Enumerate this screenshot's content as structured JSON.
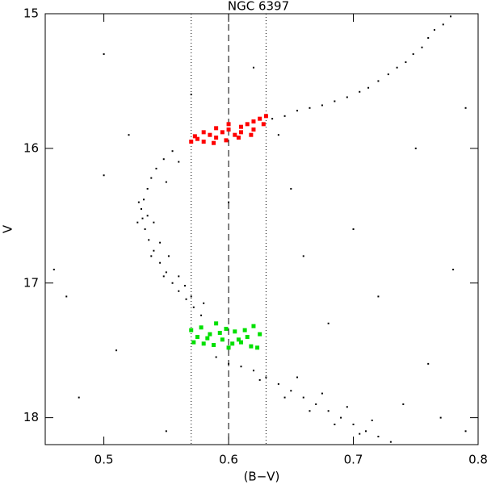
{
  "chart_data": {
    "type": "scatter",
    "title": "NGC 6397",
    "x_label": "(B−V)",
    "y_label": "V",
    "xlim": [
      0.453,
      0.8
    ],
    "ylim": [
      15,
      18.2
    ],
    "y_inverted": true,
    "xticks": [
      0.5,
      0.6,
      0.7,
      0.8
    ],
    "yticks": [
      15,
      16,
      17,
      18
    ],
    "vlines": [
      {
        "value": 0.57,
        "style": "dotted"
      },
      {
        "value": 0.6,
        "style": "dashed"
      },
      {
        "value": 0.63,
        "style": "dotted"
      }
    ],
    "series": [
      {
        "color": "#000000",
        "marker_size": 2,
        "x": [
          0.778,
          0.772,
          0.765,
          0.76,
          0.755,
          0.748,
          0.742,
          0.735,
          0.728,
          0.72,
          0.712,
          0.705,
          0.695,
          0.685,
          0.675,
          0.665,
          0.655,
          0.645,
          0.635,
          0.555,
          0.548,
          0.542,
          0.538,
          0.535,
          0.532,
          0.53,
          0.531,
          0.533,
          0.536,
          0.54,
          0.545,
          0.55,
          0.555,
          0.56,
          0.566,
          0.572,
          0.578,
          0.528,
          0.535,
          0.54,
          0.527,
          0.545,
          0.538,
          0.552,
          0.548,
          0.56,
          0.565,
          0.57,
          0.58,
          0.55,
          0.56,
          0.59,
          0.6,
          0.61,
          0.62,
          0.63,
          0.64,
          0.65,
          0.66,
          0.67,
          0.68,
          0.69,
          0.7,
          0.71,
          0.72,
          0.73,
          0.625,
          0.645,
          0.665,
          0.685,
          0.705,
          0.655,
          0.675,
          0.695,
          0.715,
          0.5,
          0.47,
          0.48,
          0.52,
          0.6,
          0.65,
          0.7,
          0.75,
          0.78,
          0.72,
          0.68,
          0.76,
          0.79,
          0.46,
          0.5,
          0.62,
          0.57,
          0.74,
          0.77,
          0.66,
          0.55,
          0.51,
          0.64,
          0.79
        ],
        "values": [
          15.02,
          15.08,
          15.12,
          15.18,
          15.25,
          15.3,
          15.36,
          15.4,
          15.45,
          15.5,
          15.55,
          15.58,
          15.62,
          15.65,
          15.68,
          15.7,
          15.72,
          15.76,
          15.78,
          16.02,
          16.08,
          16.15,
          16.22,
          16.3,
          16.38,
          16.45,
          16.52,
          16.6,
          16.68,
          16.76,
          16.85,
          16.92,
          17.0,
          17.06,
          17.12,
          17.18,
          17.24,
          16.4,
          16.5,
          16.55,
          16.55,
          16.7,
          16.8,
          16.8,
          16.95,
          16.95,
          17.02,
          17.1,
          17.15,
          16.25,
          16.1,
          17.55,
          17.6,
          17.62,
          17.65,
          17.7,
          17.75,
          17.8,
          17.85,
          17.9,
          17.95,
          18.0,
          18.05,
          18.1,
          18.14,
          18.18,
          17.72,
          17.85,
          17.95,
          18.05,
          18.12,
          17.7,
          17.82,
          17.92,
          18.02,
          15.3,
          17.1,
          17.85,
          15.9,
          16.4,
          16.3,
          16.6,
          16.0,
          16.9,
          17.1,
          17.3,
          17.6,
          18.1,
          16.9,
          16.2,
          15.4,
          15.6,
          17.9,
          18.0,
          16.8,
          18.1,
          17.5,
          15.9,
          15.7
        ]
      },
      {
        "color": "#ff0000",
        "marker_size": 5,
        "x": [
          0.57,
          0.575,
          0.58,
          0.585,
          0.59,
          0.595,
          0.6,
          0.605,
          0.61,
          0.615,
          0.62,
          0.625,
          0.63,
          0.58,
          0.59,
          0.6,
          0.61,
          0.62,
          0.573,
          0.588,
          0.598,
          0.608,
          0.618,
          0.628
        ],
        "values": [
          15.95,
          15.93,
          15.95,
          15.9,
          15.92,
          15.88,
          15.86,
          15.9,
          15.84,
          15.82,
          15.8,
          15.78,
          15.76,
          15.88,
          15.85,
          15.82,
          15.88,
          15.86,
          15.91,
          15.96,
          15.94,
          15.92,
          15.9,
          15.82
        ]
      },
      {
        "color": "#00e000",
        "marker_size": 5,
        "x": [
          0.57,
          0.575,
          0.58,
          0.585,
          0.59,
          0.595,
          0.6,
          0.605,
          0.61,
          0.615,
          0.62,
          0.625,
          0.578,
          0.588,
          0.598,
          0.608,
          0.618,
          0.583,
          0.593,
          0.603,
          0.613,
          0.572,
          0.623
        ],
        "values": [
          17.35,
          17.4,
          17.45,
          17.38,
          17.3,
          17.42,
          17.48,
          17.36,
          17.44,
          17.4,
          17.32,
          17.38,
          17.33,
          17.46,
          17.34,
          17.42,
          17.47,
          17.41,
          17.37,
          17.45,
          17.35,
          17.44,
          17.48
        ]
      }
    ]
  }
}
